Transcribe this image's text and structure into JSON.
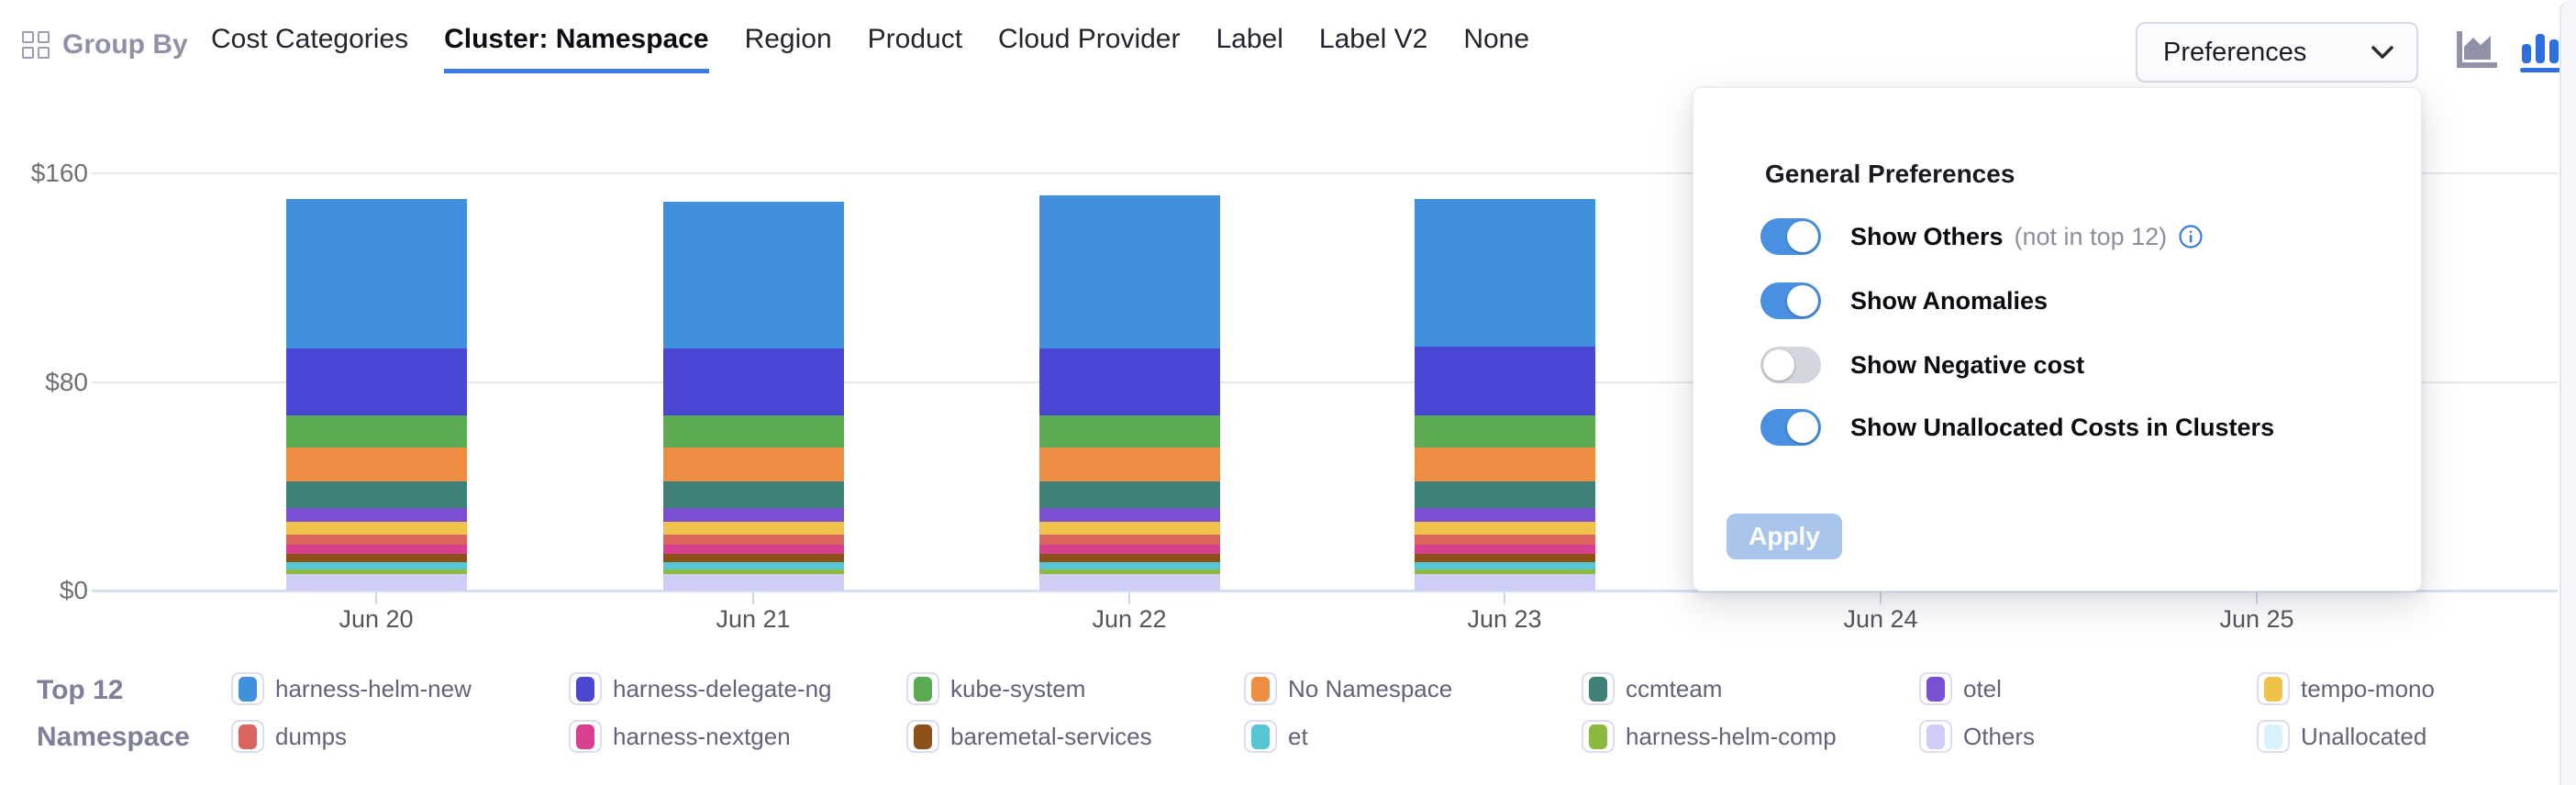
{
  "header": {
    "group_by_label": "Group By",
    "tabs": [
      {
        "label": "Cost Categories",
        "active": false
      },
      {
        "label": "Cluster: Namespace",
        "active": true
      },
      {
        "label": "Region",
        "active": false
      },
      {
        "label": "Product",
        "active": false
      },
      {
        "label": "Cloud Provider",
        "active": false
      },
      {
        "label": "Label",
        "active": false
      },
      {
        "label": "Label V2",
        "active": false
      },
      {
        "label": "None",
        "active": false
      }
    ],
    "preferences_button_label": "Preferences",
    "chart_type_icons": [
      {
        "name": "area-chart-icon",
        "active": false,
        "color": "#9092a8"
      },
      {
        "name": "bar-chart-icon",
        "active": true,
        "color": "#2e6fdf"
      }
    ]
  },
  "preferences_panel": {
    "title": "General Preferences",
    "toggles": [
      {
        "label": "Show Others",
        "suffix": "(not in top 12)",
        "has_info_icon": true,
        "on": true
      },
      {
        "label": "Show Anomalies",
        "suffix": "",
        "has_info_icon": false,
        "on": true
      },
      {
        "label": "Show Negative cost",
        "suffix": "",
        "has_info_icon": false,
        "on": false
      },
      {
        "label": "Show Unallocated Costs in Clusters",
        "suffix": "",
        "has_info_icon": false,
        "on": true
      }
    ],
    "apply_button_label": "Apply"
  },
  "legend": {
    "title_line1": "Top 12",
    "title_line2": "Namespace"
  },
  "chart_data": {
    "type": "bar",
    "stacked": true,
    "title": "",
    "xlabel": "",
    "ylabel": "",
    "ylim": [
      0,
      160
    ],
    "y_ticks": [
      {
        "value": 0,
        "label": "$0"
      },
      {
        "value": 80,
        "label": "$80"
      },
      {
        "value": 160,
        "label": "$160"
      }
    ],
    "x_axis_labels": [
      "Jun 20",
      "Jun 21",
      "Jun 22",
      "Jun 23",
      "Jun 24",
      "Jun 25"
    ],
    "categories": [
      "Jun 20",
      "Jun 21",
      "Jun 22",
      "Jun 23"
    ],
    "note": "Columns for Jun 24 and Jun 25 are occluded by the open preferences panel; values not visible.",
    "grid": true,
    "legend_position": "bottom",
    "series": [
      {
        "name": "harness-helm-new",
        "color": "#4190dd",
        "values": [
          57,
          56,
          58.5,
          56.5
        ]
      },
      {
        "name": "harness-delegate-ng",
        "color": "#4946d4",
        "values": [
          26,
          26,
          26,
          26.5
        ]
      },
      {
        "name": "kube-system",
        "color": "#5caa52",
        "values": [
          12,
          12,
          12,
          12
        ]
      },
      {
        "name": "No Namespace",
        "color": "#ed8c43",
        "values": [
          13,
          13,
          13,
          13
        ]
      },
      {
        "name": "ccmteam",
        "color": "#3e8178",
        "values": [
          10.5,
          10.5,
          10.5,
          10.5
        ]
      },
      {
        "name": "otel",
        "color": "#7b4fd1",
        "values": [
          5,
          5,
          5,
          5
        ]
      },
      {
        "name": "tempo-mono",
        "color": "#f0c14b",
        "values": [
          5,
          5,
          5,
          5
        ]
      },
      {
        "name": "dumps",
        "color": "#d9655e",
        "values": [
          4,
          4,
          4,
          4
        ]
      },
      {
        "name": "harness-nextgen",
        "color": "#d83f8e",
        "values": [
          3.5,
          3.5,
          3.5,
          3.5
        ]
      },
      {
        "name": "baremetal-services",
        "color": "#8d5019",
        "values": [
          3,
          3,
          3,
          3
        ]
      },
      {
        "name": "et",
        "color": "#58c5d3",
        "values": [
          3,
          3,
          3,
          3
        ]
      },
      {
        "name": "harness-helm-comp",
        "color": "#8cba3e",
        "values": [
          1.5,
          1.5,
          1.5,
          1.5
        ]
      },
      {
        "name": "Others",
        "color": "#cecdf7",
        "values": [
          6.5,
          6.5,
          6.5,
          6.5
        ]
      },
      {
        "name": "Unallocated",
        "color": "#d9f1fb",
        "values": [
          0,
          0,
          0,
          0
        ]
      }
    ]
  },
  "colors": {
    "active_tab_underline": "#3d7ae0",
    "toggle_on": "#4a90e2",
    "toggle_off": "#d3d6dd",
    "apply_disabled_bg": "#a9c5ec",
    "gridline": "#e7e7ea",
    "axis_line": "#d4e0ef",
    "info_icon": "#3b7be0"
  }
}
